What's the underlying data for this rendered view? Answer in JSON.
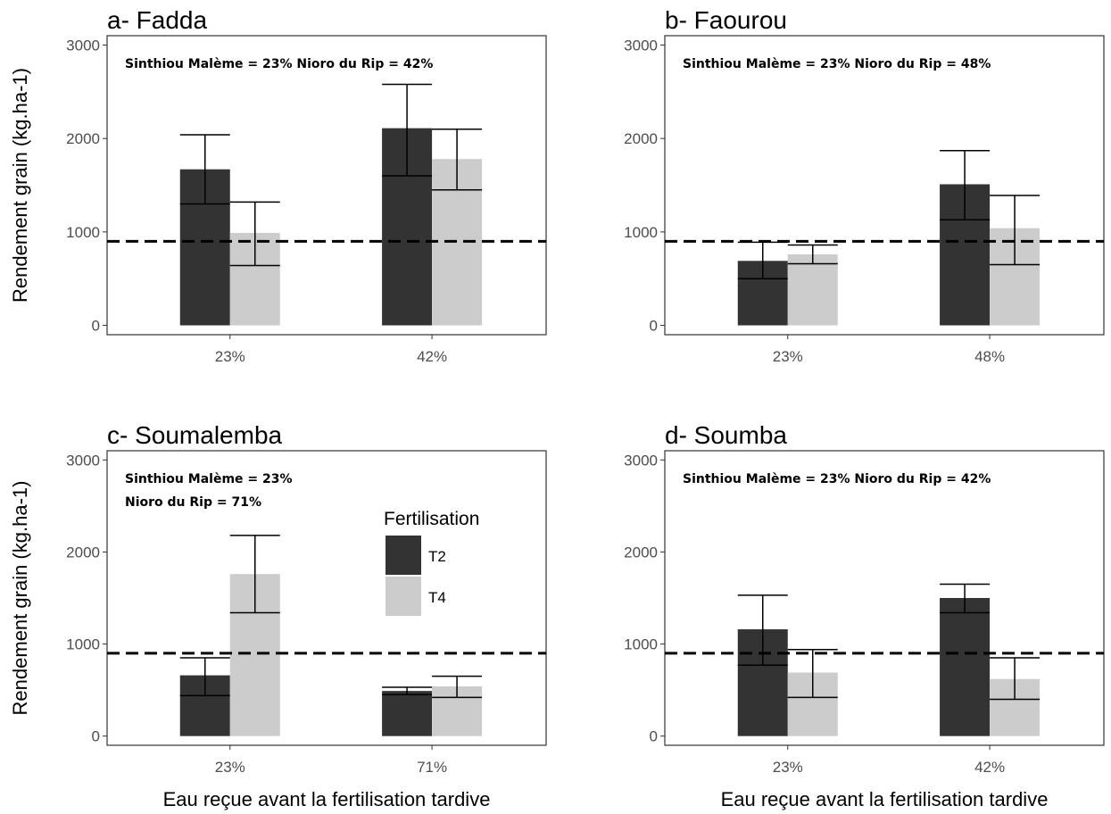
{
  "colors": {
    "T2": "#333333",
    "T4": "#cccccc",
    "reference_line": "#000000"
  },
  "chart_data": [
    {
      "type": "bar",
      "title": "a- Fadda",
      "annotation": [
        "Sinthiou Malème = 23%  Nioro du Rip = 42%"
      ],
      "categories": [
        "23%",
        "42%"
      ],
      "ylabel": "Rendement grain (kg.ha-1)",
      "xlabel": "",
      "ylim": [
        -100,
        3000
      ],
      "yticks": [
        0,
        1000,
        2000,
        3000
      ],
      "grid": false,
      "reference_line": 900,
      "series": [
        {
          "name": "T2",
          "values": [
            1670,
            2110
          ],
          "error_low": [
            1300,
            1600
          ],
          "error_high": [
            2040,
            2580
          ]
        },
        {
          "name": "T4",
          "values": [
            990,
            1780
          ],
          "error_low": [
            640,
            1450
          ],
          "error_high": [
            1320,
            2100
          ]
        }
      ]
    },
    {
      "type": "bar",
      "title": "b- Faourou",
      "annotation": [
        "Sinthiou Malème = 23%  Nioro du Rip = 48%"
      ],
      "categories": [
        "23%",
        "48%"
      ],
      "ylabel": "",
      "xlabel": "",
      "ylim": [
        -100,
        3000
      ],
      "yticks": [
        0,
        1000,
        2000,
        3000
      ],
      "grid": false,
      "reference_line": 900,
      "series": [
        {
          "name": "T2",
          "values": [
            690,
            1510
          ],
          "error_low": [
            500,
            1130
          ],
          "error_high": [
            890,
            1870
          ]
        },
        {
          "name": "T4",
          "values": [
            760,
            1040
          ],
          "error_low": [
            660,
            650
          ],
          "error_high": [
            860,
            1390
          ]
        }
      ]
    },
    {
      "type": "bar",
      "title": "c- Soumalemba",
      "annotation": [
        "Sinthiou Malème = 23%",
        "Nioro du Rip = 71%"
      ],
      "categories": [
        "23%",
        "71%"
      ],
      "ylabel": "Rendement grain (kg.ha-1)",
      "xlabel": "Eau reçue avant la fertilisation tardive",
      "ylim": [
        -100,
        3000
      ],
      "yticks": [
        0,
        1000,
        2000,
        3000
      ],
      "grid": false,
      "reference_line": 900,
      "legend": {
        "title": "Fertilisation",
        "entries": [
          "T2",
          "T4"
        ],
        "placement": "inside-right"
      },
      "series": [
        {
          "name": "T2",
          "values": [
            660,
            490
          ],
          "error_low": [
            440,
            450
          ],
          "error_high": [
            850,
            530
          ]
        },
        {
          "name": "T4",
          "values": [
            1760,
            540
          ],
          "error_low": [
            1340,
            420
          ],
          "error_high": [
            2180,
            650
          ]
        }
      ]
    },
    {
      "type": "bar",
      "title": "d- Soumba",
      "annotation": [
        "Sinthiou Malème = 23%  Nioro du Rip = 42%"
      ],
      "categories": [
        "23%",
        "42%"
      ],
      "ylabel": "",
      "xlabel": "Eau reçue avant la fertilisation tardive",
      "ylim": [
        -100,
        3000
      ],
      "yticks": [
        0,
        1000,
        2000,
        3000
      ],
      "grid": false,
      "reference_line": 900,
      "series": [
        {
          "name": "T2",
          "values": [
            1160,
            1500
          ],
          "error_low": [
            770,
            1340
          ],
          "error_high": [
            1530,
            1650
          ]
        },
        {
          "name": "T4",
          "values": [
            690,
            620
          ],
          "error_low": [
            420,
            400
          ],
          "error_high": [
            940,
            850
          ]
        }
      ]
    }
  ]
}
